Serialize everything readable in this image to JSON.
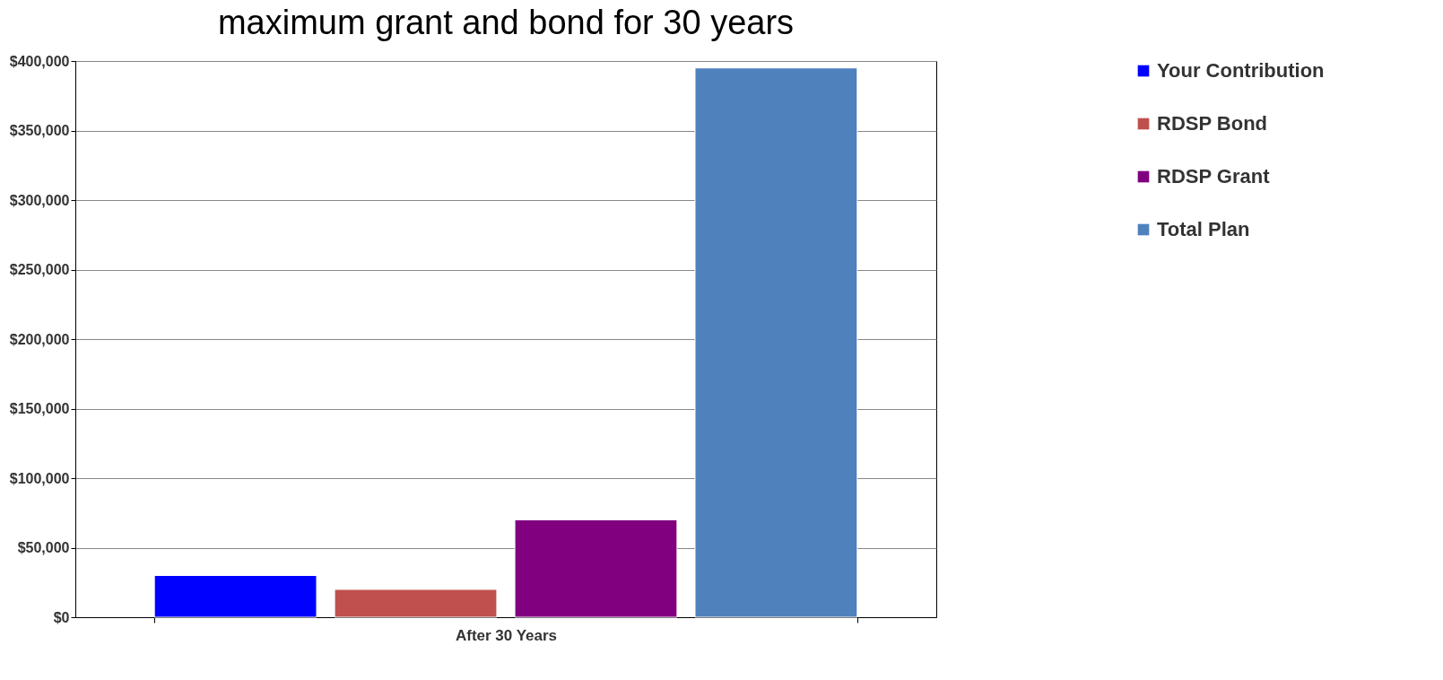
{
  "chart_data": {
    "type": "bar",
    "title": "maximum grant and bond for 30 years",
    "categories": [
      "After 30 Years"
    ],
    "series": [
      {
        "name": "Your Contribution",
        "color": "#0000ff",
        "values": [
          30000
        ]
      },
      {
        "name": "RDSP Bond",
        "color": "#c0504d",
        "values": [
          20000
        ]
      },
      {
        "name": "RDSP Grant",
        "color": "#800080",
        "values": [
          70000
        ]
      },
      {
        "name": "Total Plan",
        "color": "#4f81bd",
        "values": [
          395000
        ]
      }
    ],
    "ylim": [
      0,
      400000
    ],
    "yticks": [
      {
        "value": 0,
        "label": "$0"
      },
      {
        "value": 50000,
        "label": "$50,000"
      },
      {
        "value": 100000,
        "label": "$100,000"
      },
      {
        "value": 150000,
        "label": "$150,000"
      },
      {
        "value": 200000,
        "label": "$200,000"
      },
      {
        "value": 250000,
        "label": "$250,000"
      },
      {
        "value": 300000,
        "label": "$300,000"
      },
      {
        "value": 350000,
        "label": "$350,000"
      },
      {
        "value": 400000,
        "label": "$400,000"
      }
    ],
    "grid": "y",
    "legend": "right"
  }
}
